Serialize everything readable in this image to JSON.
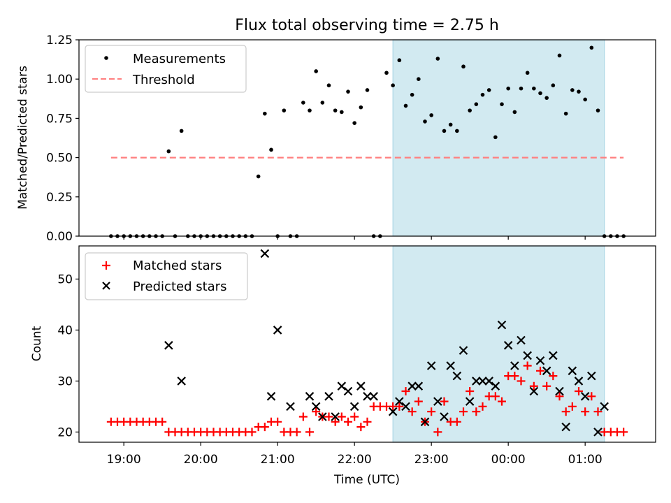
{
  "title": "Flux total observing time = 2.75 h",
  "colors": {
    "band": "#add8e6",
    "measurement": "#000000",
    "threshold": "#ff7f7f",
    "matched": "#ff0000",
    "predicted": "#000000"
  },
  "chart_data": [
    {
      "type": "scatter",
      "ylabel": "Matched/Predicted stars",
      "ylim": [
        0,
        1.25
      ],
      "yticks": [
        0.0,
        0.25,
        0.5,
        0.75,
        1.0,
        1.25
      ],
      "ytick_labels": [
        "0.00",
        "0.25",
        "0.50",
        "0.75",
        "1.00",
        "1.25"
      ],
      "legend": {
        "placement": "top-left",
        "entries": [
          "Measurements",
          "Threshold"
        ]
      },
      "threshold": {
        "value": 0.5,
        "x_start": "18:50",
        "x_end": "01:30"
      },
      "shaded_interval": [
        "22:30",
        "01:15"
      ],
      "series": [
        {
          "name": "Measurements",
          "x": [
            "18:50",
            "18:55",
            "19:00",
            "19:05",
            "19:10",
            "19:15",
            "19:20",
            "19:25",
            "19:30",
            "19:35",
            "19:40",
            "19:45",
            "19:50",
            "19:55",
            "20:00",
            "20:05",
            "20:10",
            "20:15",
            "20:20",
            "20:25",
            "20:30",
            "20:35",
            "20:40",
            "20:45",
            "20:50",
            "20:55",
            "21:00",
            "21:05",
            "21:10",
            "21:15",
            "21:20",
            "21:25",
            "21:30",
            "21:35",
            "21:40",
            "21:45",
            "21:50",
            "21:55",
            "22:00",
            "22:05",
            "22:10",
            "22:15",
            "22:20",
            "22:25",
            "22:30",
            "22:35",
            "22:40",
            "22:45",
            "22:50",
            "22:55",
            "23:00",
            "23:05",
            "23:10",
            "23:15",
            "23:20",
            "23:25",
            "23:30",
            "23:35",
            "23:40",
            "23:45",
            "23:50",
            "23:55",
            "00:00",
            "00:05",
            "00:10",
            "00:15",
            "00:20",
            "00:25",
            "00:30",
            "00:35",
            "00:40",
            "00:45",
            "00:50",
            "00:55",
            "01:00",
            "01:05",
            "01:10",
            "01:15",
            "01:20",
            "01:25",
            "01:30"
          ],
          "y": [
            0,
            0,
            0,
            0,
            0,
            0,
            0,
            0,
            0,
            0.54,
            0,
            0.67,
            0,
            0,
            0,
            0,
            0,
            0,
            0,
            0,
            0,
            0,
            0,
            0.38,
            0.78,
            0.55,
            0,
            0.8,
            0,
            0,
            0.85,
            0.8,
            1.05,
            0.85,
            0.96,
            0.8,
            0.79,
            0.92,
            0.72,
            0.82,
            0.93,
            0,
            0,
            1.04,
            0.96,
            1.12,
            0.83,
            0.9,
            1.0,
            0.73,
            0.77,
            1.13,
            0.67,
            0.71,
            0.67,
            1.08,
            0.8,
            0.84,
            0.9,
            0.93,
            0.63,
            0.84,
            0.94,
            0.79,
            0.94,
            1.04,
            0.94,
            0.91,
            0.88,
            0.96,
            1.15,
            0.78,
            0.93,
            0.92,
            0.87,
            1.2,
            0.8,
            0,
            0,
            0,
            0
          ]
        }
      ]
    },
    {
      "type": "scatter",
      "xlabel": "Time (UTC)",
      "ylabel": "Count",
      "ylim": [
        18,
        56.5
      ],
      "yticks": [
        20,
        30,
        40,
        50
      ],
      "xticks": [
        "19:00",
        "20:00",
        "21:00",
        "22:00",
        "23:00",
        "00:00",
        "01:00"
      ],
      "xlim": [
        "18:25",
        "01:55"
      ],
      "legend": {
        "placement": "top-left",
        "entries": [
          "Matched stars",
          "Predicted stars"
        ]
      },
      "shaded_interval": [
        "22:30",
        "01:15"
      ],
      "series": [
        {
          "name": "Matched stars",
          "x": [
            "18:50",
            "18:55",
            "19:00",
            "19:05",
            "19:10",
            "19:15",
            "19:20",
            "19:25",
            "19:30",
            "19:35",
            "19:40",
            "19:45",
            "19:50",
            "19:55",
            "20:00",
            "20:05",
            "20:10",
            "20:15",
            "20:20",
            "20:25",
            "20:30",
            "20:35",
            "20:40",
            "20:45",
            "20:50",
            "20:55",
            "21:00",
            "21:05",
            "21:10",
            "21:15",
            "21:20",
            "21:25",
            "21:30",
            "21:35",
            "21:40",
            "21:45",
            "21:50",
            "21:55",
            "22:00",
            "22:05",
            "22:10",
            "22:15",
            "22:20",
            "22:25",
            "22:30",
            "22:35",
            "22:40",
            "22:45",
            "22:50",
            "22:55",
            "23:00",
            "23:05",
            "23:10",
            "23:15",
            "23:20",
            "23:25",
            "23:30",
            "23:35",
            "23:40",
            "23:45",
            "23:50",
            "23:55",
            "00:00",
            "00:05",
            "00:10",
            "00:15",
            "00:20",
            "00:25",
            "00:30",
            "00:35",
            "00:40",
            "00:45",
            "00:50",
            "00:55",
            "01:00",
            "01:05",
            "01:10",
            "01:15",
            "01:20",
            "01:25",
            "01:30"
          ],
          "y": [
            22,
            22,
            22,
            22,
            22,
            22,
            22,
            22,
            22,
            20,
            20,
            20,
            20,
            20,
            20,
            20,
            20,
            20,
            20,
            20,
            20,
            20,
            20,
            21,
            21,
            22,
            22,
            20,
            20,
            20,
            23,
            20,
            24,
            23,
            23,
            22,
            23,
            22,
            23,
            21,
            22,
            25,
            25,
            25,
            25,
            25,
            28,
            24,
            26,
            22,
            24,
            20,
            26,
            22,
            22,
            24,
            28,
            24,
            25,
            27,
            27,
            26,
            31,
            31,
            30,
            33,
            29,
            32,
            29,
            31,
            27,
            24,
            25,
            28,
            24,
            27,
            24,
            20,
            20,
            20,
            20
          ]
        },
        {
          "name": "Predicted stars",
          "x": [
            "19:35",
            "19:45",
            "20:50",
            "20:55",
            "21:00",
            "21:10",
            "21:25",
            "21:30",
            "21:35",
            "21:40",
            "21:45",
            "21:50",
            "21:55",
            "22:00",
            "22:05",
            "22:10",
            "22:15",
            "22:30",
            "22:35",
            "22:40",
            "22:45",
            "22:50",
            "22:55",
            "23:00",
            "23:05",
            "23:10",
            "23:15",
            "23:20",
            "23:25",
            "23:30",
            "23:35",
            "23:40",
            "23:45",
            "23:50",
            "23:55",
            "00:00",
            "00:05",
            "00:10",
            "00:15",
            "00:20",
            "00:25",
            "00:30",
            "00:35",
            "00:40",
            "00:45",
            "00:50",
            "00:55",
            "01:00",
            "01:05",
            "01:10",
            "01:15"
          ],
          "y": [
            37,
            30,
            55,
            27,
            40,
            25,
            27,
            25,
            23,
            27,
            23,
            29,
            28,
            25,
            29,
            27,
            27,
            24,
            26,
            25,
            29,
            29,
            22,
            33,
            26,
            23,
            33,
            31,
            36,
            26,
            30,
            30,
            30,
            29,
            41,
            37,
            33,
            38,
            35,
            28,
            34,
            32,
            35,
            28,
            21,
            32,
            30,
            27,
            31,
            20,
            25
          ]
        }
      ]
    }
  ]
}
